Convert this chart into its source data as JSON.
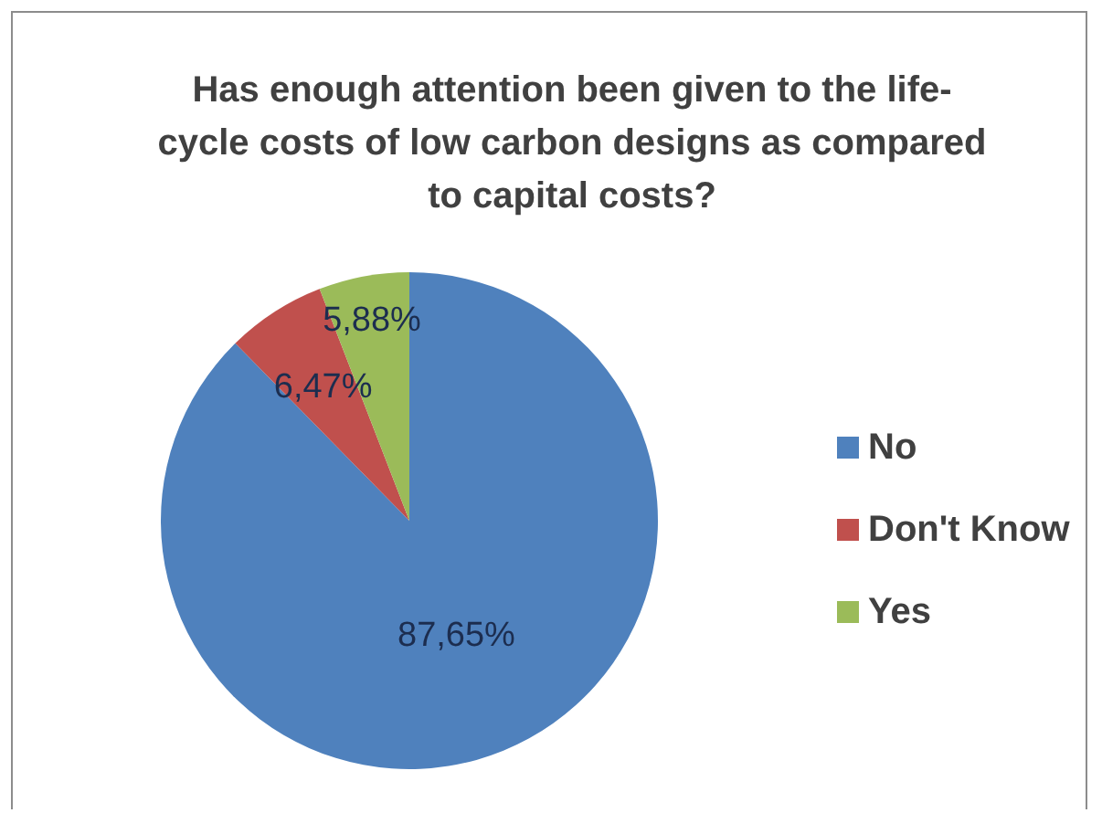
{
  "chart_data": {
    "type": "pie",
    "title": "Has enough attention been given to the life-cycle costs of low carbon designs as compared to capital costs?",
    "categories": [
      "No",
      "Don't Know",
      "Yes"
    ],
    "values": [
      87.65,
      6.47,
      5.88
    ],
    "colors": [
      "#4f81bd",
      "#c0504d",
      "#9bbb59"
    ],
    "value_labels": [
      "87,65%",
      "6,47%",
      "5,88%"
    ],
    "legend": "right"
  }
}
